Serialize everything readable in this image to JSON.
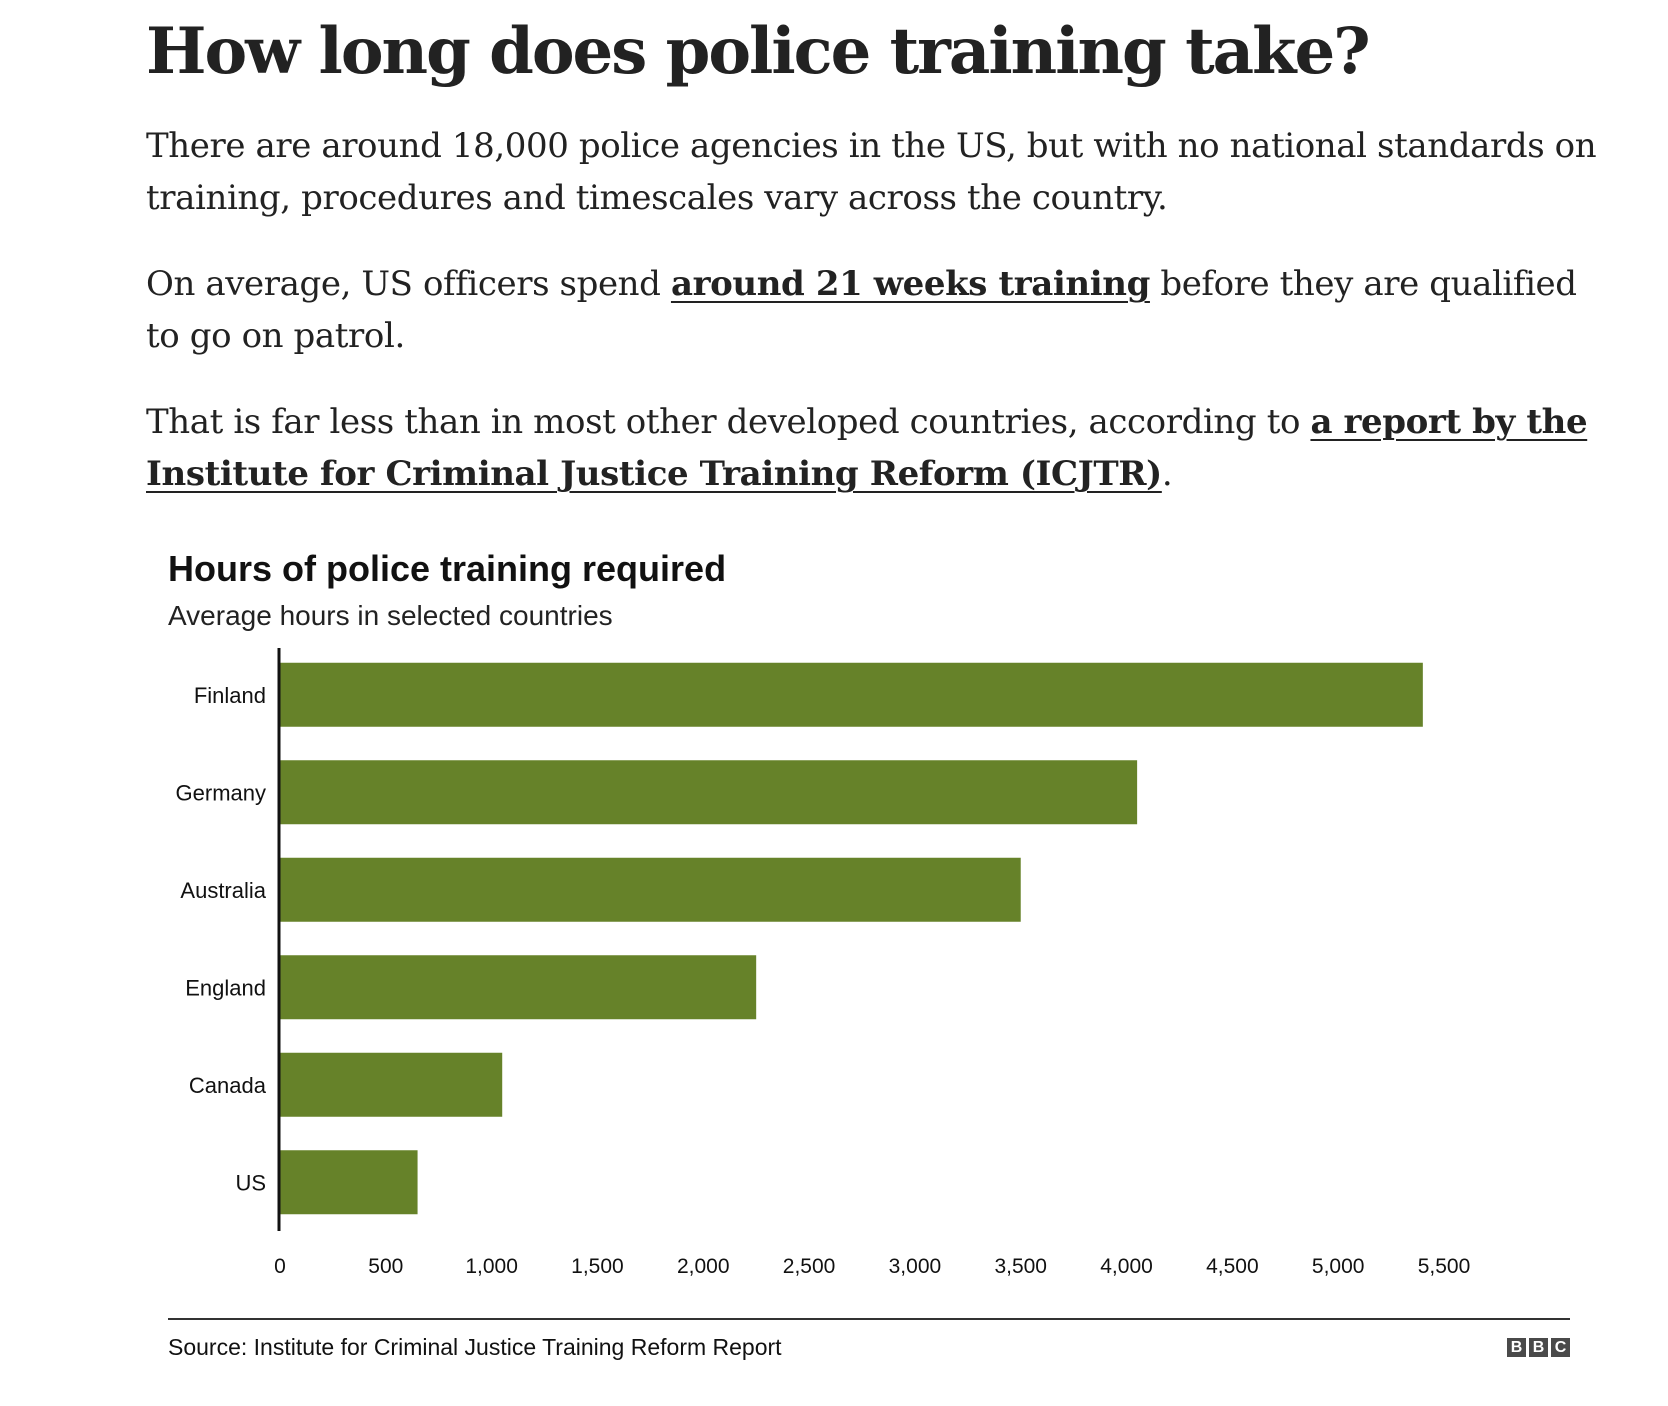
{
  "article": {
    "headline": "How long does police training take?",
    "paragraphs": [
      {
        "text": "There are around 18,000 police agencies in the US, but with no national standards on training, procedures and timescales vary across the country."
      },
      {
        "before": "On average, US officers spend ",
        "link": "around 21 weeks training",
        "after": " before they are qualified to go on patrol."
      },
      {
        "before": "That is far less than in most other developed countries, according to ",
        "link": "a report by the Institute for Criminal Justice Training Reform (ICJTR)",
        "after": "."
      }
    ]
  },
  "chart_data": {
    "type": "bar",
    "orientation": "horizontal",
    "title": "Hours of police training required",
    "subtitle": "Average hours in selected countries",
    "categories": [
      "Finland",
      "Germany",
      "Australia",
      "England",
      "Canada",
      "US"
    ],
    "values": [
      5400,
      4050,
      3500,
      2250,
      1050,
      650
    ],
    "xlim": [
      0,
      5500
    ],
    "xticks": [
      "0",
      "500",
      "1,000",
      "1,500",
      "2,000",
      "2,500",
      "3,000",
      "3,500",
      "4,000",
      "4,500",
      "5,000",
      "5,500"
    ],
    "xtick_values": [
      0,
      500,
      1000,
      1500,
      2000,
      2500,
      3000,
      3500,
      4000,
      4500,
      5000,
      5500
    ],
    "bar_color": "#668229",
    "grid": false,
    "legend": "none",
    "source": "Source: Institute for Criminal Justice Training Reform Report"
  },
  "branding": {
    "logo_letters": [
      "B",
      "B",
      "C"
    ]
  }
}
